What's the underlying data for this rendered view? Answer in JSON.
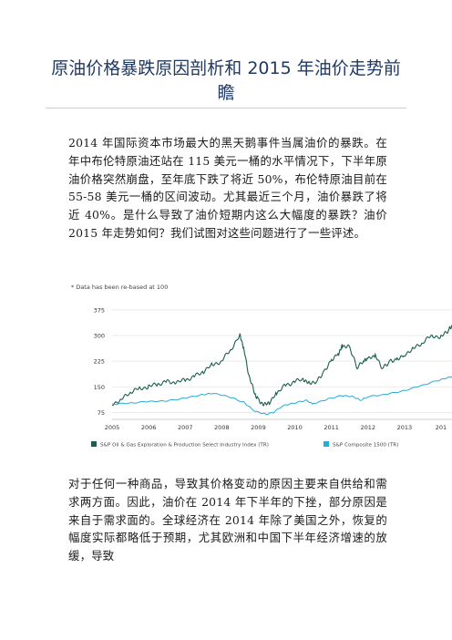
{
  "document": {
    "title": "原油价格暴跌原因剖析和 2015 年油价走势前瞻",
    "paragraphs": [
      "2014 年国际资本市场最大的黑天鹅事件当属油价的暴跌。在年中布伦特原油还站在 115 美元一桶的水平情况下，下半年原油价格突然崩盘，至年底下跌了将近 50%，布伦特原油目前在 55-58 美元一桶的区间波动。尤其最近三个月，油价暴跌了将近 40%。是什么导致了油价短期内这么大幅度的暴跌？油价 2015 年走势如何？我们试图对这些问题进行了一些评述。",
      "对于任何一种商品，导致其价格变动的原因主要来自供给和需求两方面。因此，油价在 2014 年下半年的下挫，部分原因是来自于需求面的。全球经济在 2014 年除了美国之外，恢复的幅度实际都略低于预期，尤其欧洲和中国下半年经济增速的放缓，导致"
    ]
  },
  "chart_data": {
    "type": "line",
    "note": "* Data has been re-based at 100",
    "yticks": [
      375,
      300,
      225,
      150,
      75
    ],
    "ylim": [
      60,
      380
    ],
    "xticks": [
      "2005",
      "2006",
      "2007",
      "2008",
      "2009",
      "2010",
      "2011",
      "2012",
      "2013",
      "201"
    ],
    "xlim": [
      2005,
      2014.3
    ],
    "series": [
      {
        "name": "S&P Oil & Gas Exploration & Production Select Industry Index (TR)",
        "color": "#1b5e4f",
        "points": [
          [
            2005.0,
            100
          ],
          [
            2005.25,
            112
          ],
          [
            2005.5,
            135
          ],
          [
            2005.75,
            145
          ],
          [
            2006.0,
            150
          ],
          [
            2006.25,
            158
          ],
          [
            2006.5,
            165
          ],
          [
            2006.75,
            162
          ],
          [
            2007.0,
            170
          ],
          [
            2007.25,
            180
          ],
          [
            2007.5,
            195
          ],
          [
            2007.75,
            215
          ],
          [
            2008.0,
            225
          ],
          [
            2008.25,
            260
          ],
          [
            2008.5,
            300
          ],
          [
            2008.6,
            265
          ],
          [
            2008.75,
            180
          ],
          [
            2008.9,
            130
          ],
          [
            2009.0,
            115
          ],
          [
            2009.15,
            95
          ],
          [
            2009.3,
            105
          ],
          [
            2009.5,
            130
          ],
          [
            2009.75,
            155
          ],
          [
            2010.0,
            165
          ],
          [
            2010.25,
            172
          ],
          [
            2010.4,
            158
          ],
          [
            2010.6,
            168
          ],
          [
            2010.8,
            195
          ],
          [
            2011.0,
            230
          ],
          [
            2011.2,
            250
          ],
          [
            2011.3,
            270
          ],
          [
            2011.5,
            265
          ],
          [
            2011.7,
            205
          ],
          [
            2011.9,
            225
          ],
          [
            2012.0,
            230
          ],
          [
            2012.2,
            240
          ],
          [
            2012.4,
            205
          ],
          [
            2012.6,
            225
          ],
          [
            2012.8,
            232
          ],
          [
            2013.0,
            245
          ],
          [
            2013.25,
            262
          ],
          [
            2013.5,
            280
          ],
          [
            2013.75,
            300
          ],
          [
            2014.0,
            295
          ],
          [
            2014.2,
            315
          ],
          [
            2014.3,
            330
          ]
        ]
      },
      {
        "name": "S&P Composite 1500 (TR)",
        "color": "#29a9d6",
        "points": [
          [
            2005.0,
            100
          ],
          [
            2005.5,
            103
          ],
          [
            2006.0,
            106
          ],
          [
            2006.5,
            108
          ],
          [
            2007.0,
            118
          ],
          [
            2007.5,
            128
          ],
          [
            2007.8,
            130
          ],
          [
            2008.2,
            120
          ],
          [
            2008.6,
            105
          ],
          [
            2008.9,
            80
          ],
          [
            2009.2,
            70
          ],
          [
            2009.4,
            75
          ],
          [
            2009.7,
            95
          ],
          [
            2010.0,
            102
          ],
          [
            2010.3,
            110
          ],
          [
            2010.5,
            100
          ],
          [
            2010.9,
            115
          ],
          [
            2011.3,
            125
          ],
          [
            2011.6,
            120
          ],
          [
            2011.8,
            110
          ],
          [
            2012.0,
            120
          ],
          [
            2012.5,
            128
          ],
          [
            2013.0,
            140
          ],
          [
            2013.5,
            155
          ],
          [
            2014.0,
            170
          ],
          [
            2014.3,
            180
          ]
        ]
      }
    ]
  }
}
